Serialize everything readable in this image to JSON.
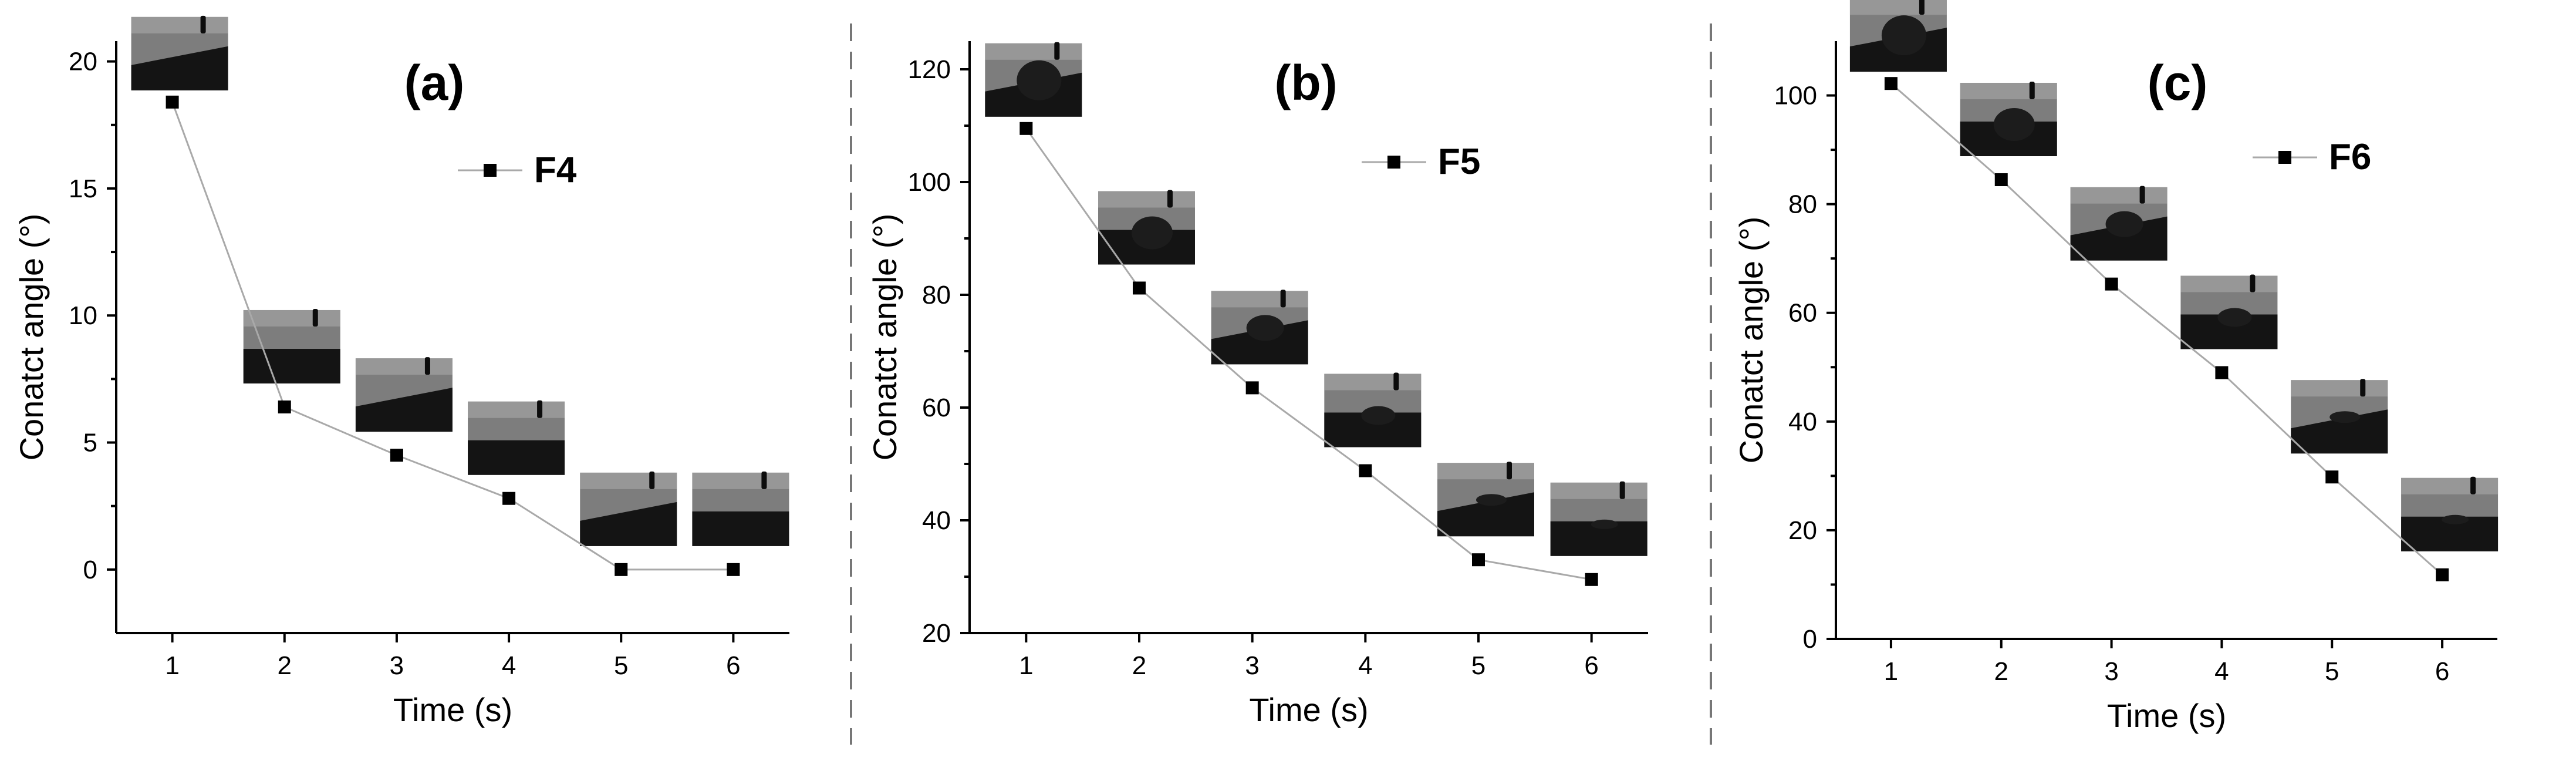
{
  "chart_data": [
    {
      "type": "line",
      "panel_label": "(a)",
      "x": [
        1,
        2,
        3,
        4,
        5,
        6
      ],
      "series": [
        {
          "name": "F4",
          "values": [
            18.4,
            6.4,
            4.5,
            2.8,
            0,
            0
          ]
        }
      ],
      "xlabel": "Time (s)",
      "ylabel": "Conatct angle (°)",
      "xlim": [
        0.5,
        6.5
      ],
      "ylim": [
        -2.5,
        20.8
      ],
      "xticks": [
        1,
        2,
        3,
        4,
        5,
        6
      ],
      "yticks": [
        0,
        5,
        10,
        15,
        20
      ],
      "legend": "top-right",
      "grid": false
    },
    {
      "type": "line",
      "panel_label": "(b)",
      "x": [
        1,
        2,
        3,
        4,
        5,
        6
      ],
      "series": [
        {
          "name": "F5",
          "values": [
            109.5,
            81.2,
            63.5,
            48.8,
            33,
            29.5
          ]
        }
      ],
      "xlabel": "Time (s)",
      "ylabel": "Conatct angle (°)",
      "xlim": [
        0.5,
        6.5
      ],
      "ylim": [
        20,
        125
      ],
      "xticks": [
        1,
        2,
        3,
        4,
        5,
        6
      ],
      "yticks": [
        20,
        40,
        60,
        80,
        100,
        120
      ],
      "legend": "top-right",
      "grid": false
    },
    {
      "type": "line",
      "panel_label": "(c)",
      "x": [
        1,
        2,
        3,
        4,
        5,
        6
      ],
      "series": [
        {
          "name": "F6",
          "values": [
            102.2,
            84.5,
            65.3,
            49,
            29.8,
            11.8
          ]
        }
      ],
      "xlabel": "Time (s)",
      "ylabel": "Conatct angle (°)",
      "xlim": [
        0.5,
        6.5
      ],
      "ylim": [
        0,
        110
      ],
      "xticks": [
        1,
        2,
        3,
        4,
        5,
        6
      ],
      "yticks": [
        0,
        20,
        40,
        60,
        80,
        100
      ],
      "legend": "top-right",
      "grid": false
    }
  ]
}
